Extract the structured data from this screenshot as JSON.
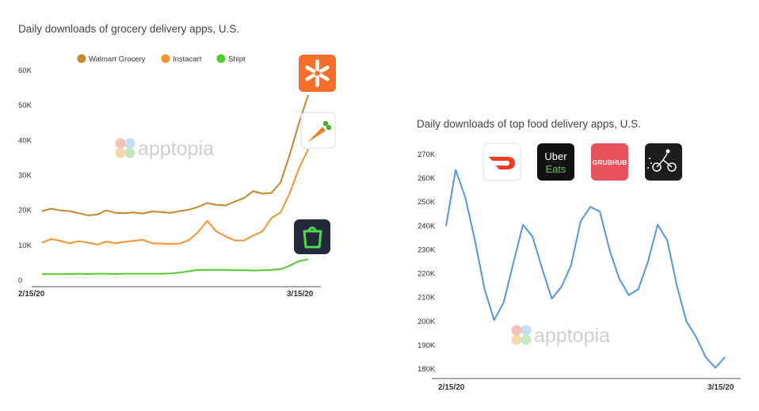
{
  "watermark": "apptopia",
  "chart_data": [
    {
      "type": "line",
      "title": "Daily downloads of grocery delivery apps, U.S.",
      "y_ticks": [
        "0",
        "10K",
        "20K",
        "30K",
        "40K",
        "50K",
        "60K"
      ],
      "ylim": [
        0,
        60000
      ],
      "x_labels": [
        "2/15/20",
        "3/15/20"
      ],
      "legend_placement": "top-center",
      "series": [
        {
          "name": "Walmart Grocery",
          "color": "#c8852a",
          "icon": "walmart-spark-icon",
          "values": [
            19800,
            20500,
            20000,
            19800,
            19200,
            18600,
            18800,
            20000,
            19300,
            19200,
            19400,
            19100,
            19700,
            19500,
            19300,
            19800,
            20200,
            21000,
            22100,
            21600,
            21400,
            22500,
            23500,
            25500,
            24800,
            25000,
            28000,
            36000,
            45000,
            53000
          ]
        },
        {
          "name": "Instacart",
          "color": "#f7922e",
          "icon": "carrot-icon",
          "values": [
            10800,
            11800,
            11300,
            10600,
            11200,
            10800,
            10200,
            11100,
            10600,
            11000,
            11300,
            11600,
            10600,
            10500,
            10400,
            10500,
            11500,
            13800,
            17000,
            14000,
            12600,
            11400,
            11400,
            12800,
            14000,
            17800,
            19400,
            25000,
            32000,
            37500
          ]
        },
        {
          "name": "Shipt",
          "color": "#55cc2e",
          "icon": "shipt-bag-icon",
          "values": [
            1800,
            1800,
            1800,
            1800,
            1900,
            1800,
            1900,
            1900,
            1800,
            1900,
            1900,
            1900,
            1900,
            1900,
            2000,
            2200,
            2600,
            3000,
            3000,
            3000,
            3000,
            2900,
            2900,
            2800,
            2900,
            3000,
            3200,
            4200,
            5500,
            6000
          ]
        }
      ]
    },
    {
      "type": "line",
      "title": "Daily downloads of top food delivery apps, U.S.",
      "y_ticks": [
        "180K",
        "190K",
        "200K",
        "210K",
        "220K",
        "230K",
        "240K",
        "250K",
        "260K",
        "270K"
      ],
      "ylim": [
        180000,
        270000
      ],
      "x_labels": [
        "2/15/20",
        "3/15/20"
      ],
      "color": "#5594e8",
      "values": [
        240000,
        263500,
        252000,
        234000,
        213500,
        200500,
        208000,
        224500,
        240500,
        235500,
        222000,
        209500,
        214500,
        223500,
        242000,
        248000,
        246000,
        230000,
        218000,
        211000,
        213500,
        225000,
        240500,
        234000,
        215000,
        200000,
        193500,
        185000,
        180500,
        185000
      ],
      "logos": [
        {
          "icon": "doordash-icon",
          "bg": "#ffffff",
          "fg": "#ef3e24"
        },
        {
          "icon": "uber-eats-icon",
          "bg": "#111111",
          "fg": "#ffffff",
          "line1": "Uber",
          "line2": "Eats",
          "line2_color": "#5fc248"
        },
        {
          "icon": "grubhub-icon",
          "bg": "#e8525a",
          "fg": "#ffffff",
          "text": "GRUBHUB"
        },
        {
          "icon": "postmates-icon",
          "bg": "#1c1c1c",
          "fg": "#ffffff"
        }
      ]
    }
  ]
}
